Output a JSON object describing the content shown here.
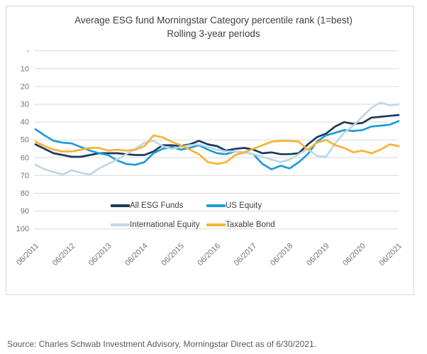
{
  "source_text": "Source: Charles Schwab Investment Advisory, Morningstar Direct as of 6/30/2021.",
  "chart_data": {
    "type": "line",
    "title": "Average ESG fund Morningstar Category percentile rank (1=best)",
    "subtitle": "Rolling 3-year periods",
    "grid": "horizontal",
    "legend_position": "inside-bottom",
    "y_axis": {
      "min": 0,
      "max": 100,
      "step": 10,
      "inverted": true,
      "tick_labels": [
        "-",
        "10",
        "20",
        "30",
        "40",
        "50",
        "60",
        "70",
        "80",
        "90",
        "100"
      ]
    },
    "x_axis": {
      "tick_labels": [
        "06/2011",
        "06/2012",
        "06/2013",
        "06/2014",
        "06/2015",
        "06/2016",
        "06/2017",
        "06/2018",
        "06/2019",
        "06/2020",
        "06/2021"
      ],
      "points_per_year": 4,
      "note": "series sampled quarterly from 06/2011 to 06/2021"
    },
    "series": [
      {
        "name": "All ESG Funds",
        "color": "#1b3a5c",
        "values": [
          52.5,
          55,
          57.5,
          58.5,
          59.5,
          59.5,
          58.5,
          57.5,
          57.5,
          57.5,
          58,
          58.5,
          58.5,
          56.5,
          53,
          53,
          53.5,
          52.5,
          50.5,
          52.5,
          53.5,
          56,
          55,
          54.5,
          55.5,
          57.5,
          57,
          58,
          58,
          57.5,
          52.5,
          48.5,
          46.5,
          42.5,
          40,
          41,
          40.5,
          37.5,
          37,
          36.5,
          36
        ]
      },
      {
        "name": "US Equity",
        "color": "#1e9cd8",
        "values": [
          44,
          47.5,
          50.5,
          51.5,
          52,
          54,
          56,
          57.5,
          58.5,
          61.5,
          63.5,
          64,
          62.5,
          57.5,
          55,
          54,
          55.5,
          54.5,
          53,
          55.5,
          57.5,
          58,
          56.5,
          57,
          58,
          63.5,
          66.5,
          64.5,
          66,
          62.5,
          58,
          51,
          47.5,
          46,
          44.5,
          45,
          44.5,
          42.5,
          42,
          41.5,
          39.5
        ]
      },
      {
        "name": "International Equity",
        "color": "#bed8e2",
        "values": [
          64,
          66.5,
          68,
          69.5,
          67,
          68.5,
          69.5,
          66,
          63.5,
          61,
          58,
          55,
          51.5,
          50.5,
          53.5,
          55,
          54,
          53,
          52.5,
          54,
          55.5,
          56.5,
          56.5,
          57,
          58,
          59.5,
          61,
          62.5,
          61,
          58,
          55,
          59,
          59.5,
          52,
          46,
          42,
          37,
          32,
          29,
          30.5,
          30
        ]
      },
      {
        "name": "Taxable Bond",
        "color": "#fab234",
        "values": [
          51,
          53.5,
          55.5,
          56.5,
          56.5,
          55.5,
          54.5,
          54.5,
          56,
          55.5,
          56,
          55.5,
          53.5,
          47.5,
          48.5,
          51,
          53,
          55.5,
          58,
          62.5,
          63.5,
          62.5,
          58.5,
          57,
          55,
          53,
          51,
          50.5,
          50.5,
          51,
          55.5,
          51.5,
          50,
          53,
          54.5,
          57,
          56,
          57.5,
          55.5,
          52.5,
          53.5
        ]
      }
    ]
  }
}
